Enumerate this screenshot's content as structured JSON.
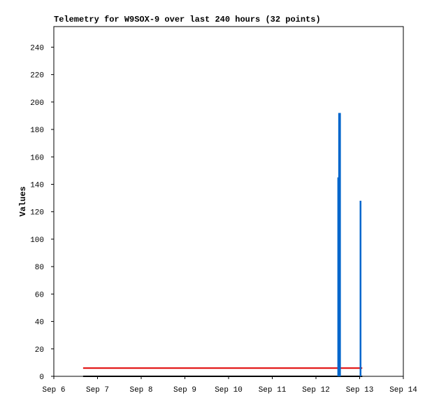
{
  "chart_data": {
    "type": "line",
    "title": "Telemetry for W9SOX-9 over last 240 hours (32 points)",
    "y_label": "Values",
    "xlim": [
      6,
      14
    ],
    "xticks": [
      {
        "value": 6,
        "label": "Sep 6"
      },
      {
        "value": 7,
        "label": "Sep 7"
      },
      {
        "value": 8,
        "label": "Sep 8"
      },
      {
        "value": 9,
        "label": "Sep 9"
      },
      {
        "value": 10,
        "label": "Sep 10"
      },
      {
        "value": 11,
        "label": "Sep 11"
      },
      {
        "value": 12,
        "label": "Sep 12"
      },
      {
        "value": 13,
        "label": "Sep 13"
      },
      {
        "value": 14,
        "label": "Sep 14"
      }
    ],
    "ylim": [
      0,
      255
    ],
    "yticks": [
      0,
      20,
      40,
      60,
      80,
      100,
      120,
      140,
      160,
      180,
      200,
      220,
      240
    ],
    "series": [
      {
        "color": "#000000",
        "kind": "line",
        "x": [
          6.67,
          13.06
        ],
        "values": [
          0,
          0
        ]
      },
      {
        "color": "#e00000",
        "kind": "line",
        "x": [
          6.67,
          13.06
        ],
        "values": [
          6,
          6
        ]
      },
      {
        "color": "#0066cc",
        "kind": "impulse",
        "x": [
          12.51,
          12.53,
          12.55,
          13.02
        ],
        "values": [
          145,
          192,
          192,
          128
        ]
      }
    ]
  }
}
